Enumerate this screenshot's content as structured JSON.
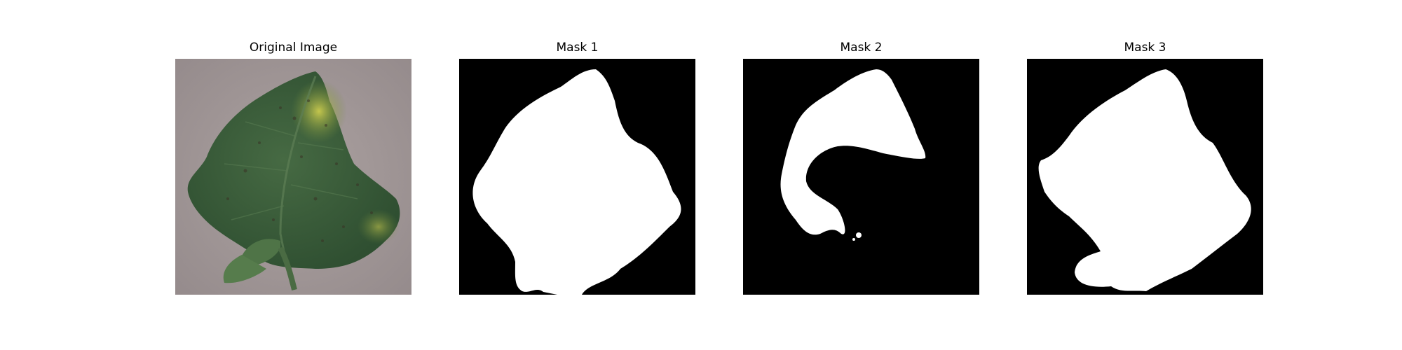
{
  "panels": [
    {
      "title": "Original Image"
    },
    {
      "title": "Mask 1"
    },
    {
      "title": "Mask 2"
    },
    {
      "title": "Mask 3"
    }
  ],
  "colors": {
    "background": "#ffffff",
    "mask_background": "#000000",
    "mask_foreground": "#ffffff",
    "leaf_background": "#a39a9a",
    "leaf_green": "#3d5f3c",
    "leaf_yellow": "#a9b23e"
  }
}
